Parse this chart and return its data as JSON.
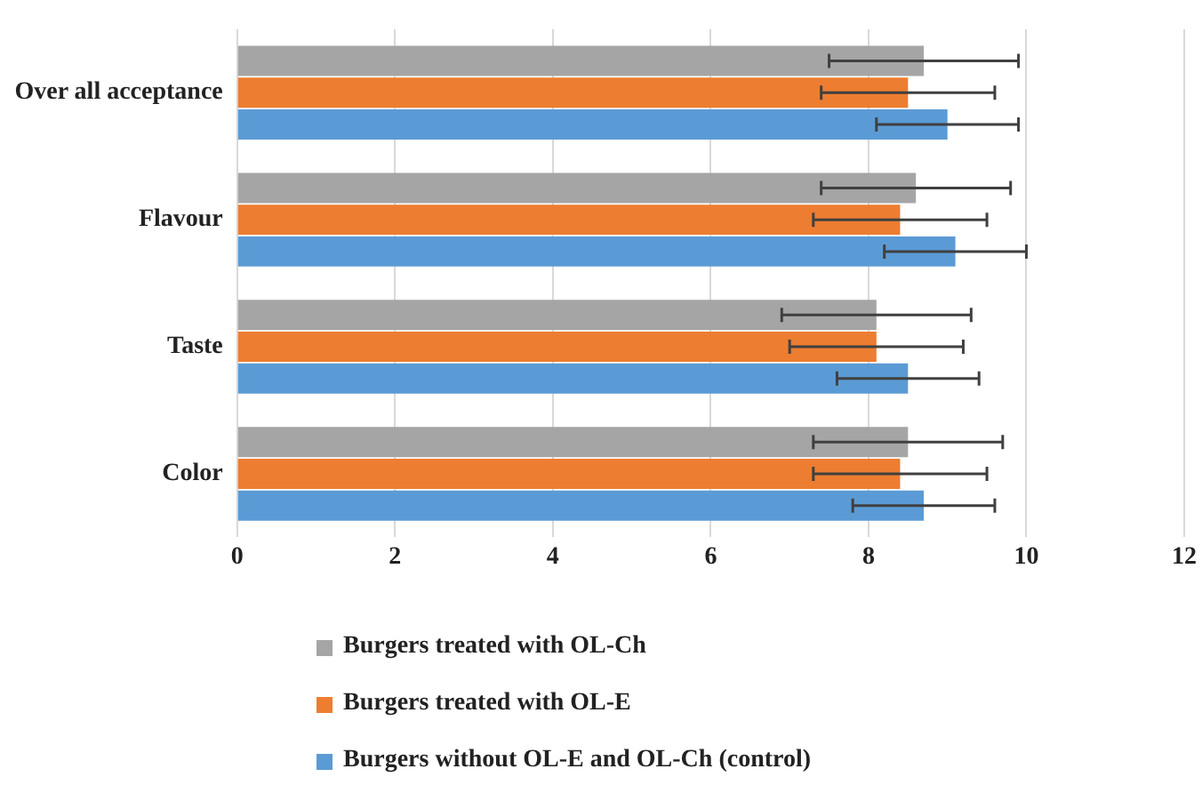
{
  "chart_data": {
    "type": "bar",
    "orientation": "horizontal",
    "categories": [
      "Over all acceptance",
      "Flavour",
      "Taste",
      "Color"
    ],
    "series": [
      {
        "name": "Burgers treated with OL-Ch",
        "color": "#a5a5a5",
        "values": [
          8.7,
          8.6,
          8.1,
          8.5
        ],
        "errors": [
          1.2,
          1.2,
          1.2,
          1.2
        ]
      },
      {
        "name": "Burgers treated with OL-E",
        "color": "#ed7d31",
        "values": [
          8.5,
          8.4,
          8.1,
          8.4
        ],
        "errors": [
          1.1,
          1.1,
          1.1,
          1.1
        ]
      },
      {
        "name": "Burgers without OL-E and OL-Ch (control)",
        "color": "#5b9bd5",
        "values": [
          9.0,
          9.1,
          8.5,
          8.7
        ],
        "errors": [
          0.9,
          0.9,
          0.9,
          0.9
        ]
      }
    ],
    "xlim": [
      0,
      12
    ],
    "xticks": [
      0,
      2,
      4,
      6,
      8,
      10,
      12
    ],
    "grid": "x",
    "legend": "bottom"
  }
}
